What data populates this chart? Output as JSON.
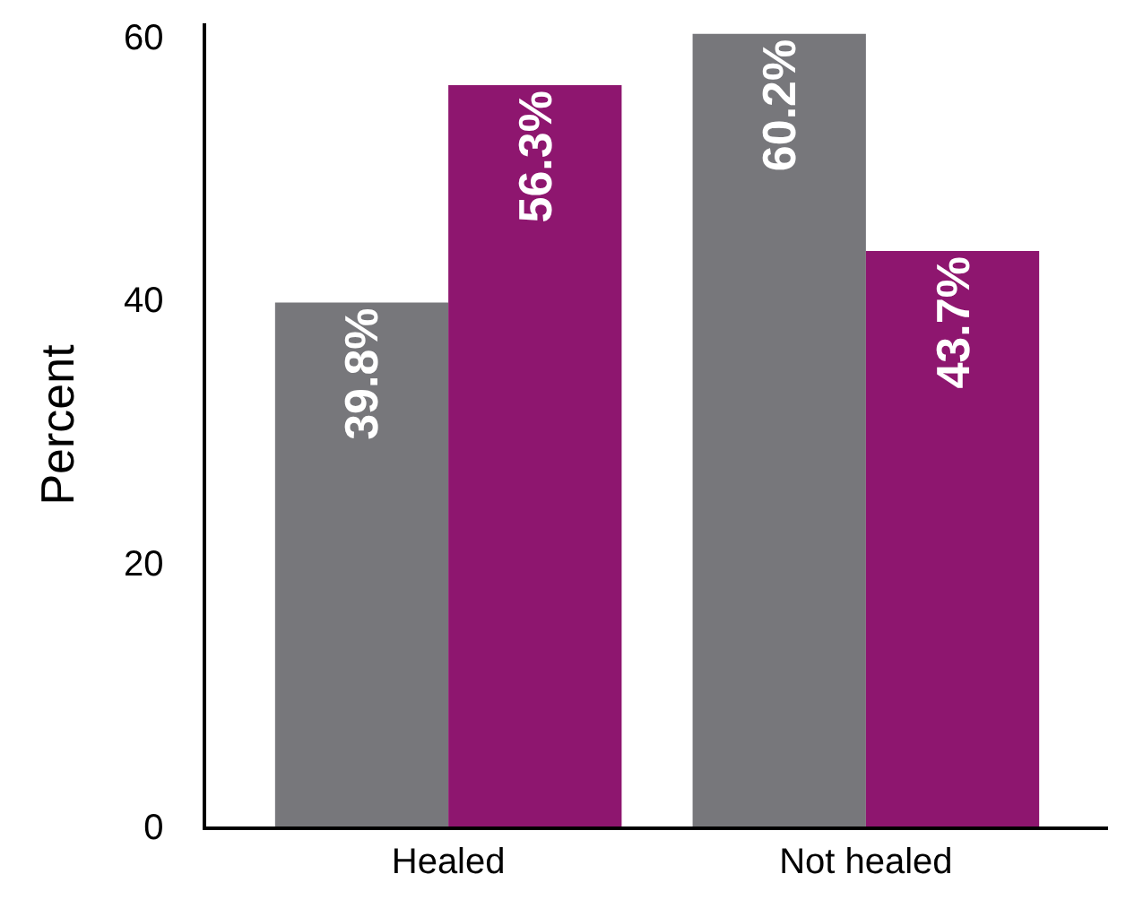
{
  "chart_data": {
    "type": "bar",
    "ylabel": "Percent",
    "categories": [
      "Healed",
      "Not healed"
    ],
    "series": [
      {
        "color": "#77777b",
        "values": [
          39.8,
          60.2
        ],
        "value_labels": [
          "39.8%",
          "60.2%"
        ]
      },
      {
        "color": "#8e166f",
        "values": [
          56.3,
          43.7
        ],
        "value_labels": [
          "56.3%",
          "43.7%"
        ]
      }
    ],
    "ylim": [
      0,
      61
    ],
    "yticks": [
      0,
      20,
      40,
      60
    ],
    "legend": false
  }
}
